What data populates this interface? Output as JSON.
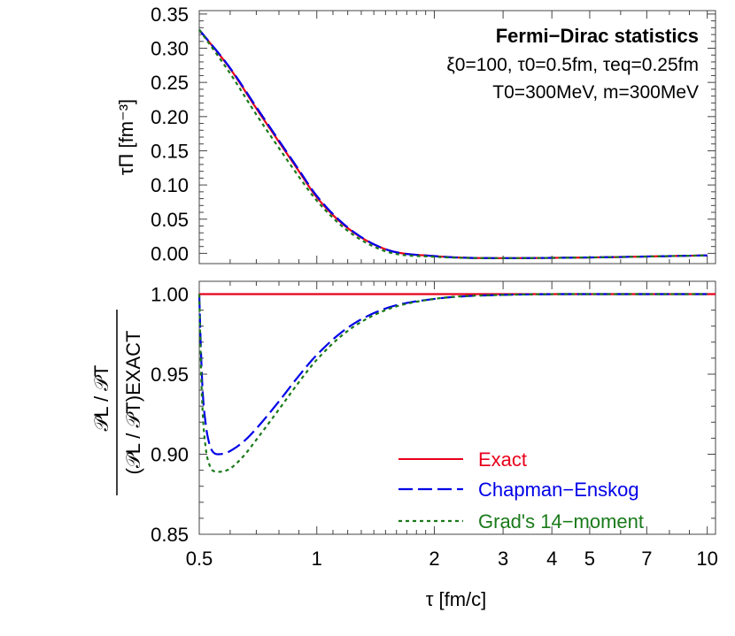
{
  "chart_data": [
    {
      "type": "line",
      "panel": "top",
      "ylabel": "τΠ [fm⁻³]",
      "xscale": "log",
      "xlim": [
        0.5,
        10.5
      ],
      "ylim": [
        -0.015,
        0.355
      ],
      "yticks": [
        0.0,
        0.05,
        0.1,
        0.15,
        0.2,
        0.25,
        0.3,
        0.35
      ],
      "ytick_labels": [
        "0.00",
        "0.05",
        "0.10",
        "0.15",
        "0.20",
        "0.25",
        "0.30",
        "0.35"
      ],
      "annotations": {
        "title": "Fermi−Dirac statistics",
        "params_line1": "ξ0=100, τ0=0.5fm, τeq=0.25fm",
        "params_line2": "T0=300MeV, m=300MeV"
      },
      "series": [
        {
          "name": "Exact",
          "color": "#e8001c",
          "x": [
            0.5,
            0.6,
            0.7,
            0.8,
            0.9,
            1.0,
            1.2,
            1.5,
            2.0,
            3.0,
            5.0,
            10.0
          ],
          "y": [
            0.327,
            0.27,
            0.212,
            0.163,
            0.12,
            0.082,
            0.037,
            0.006,
            -0.004,
            -0.007,
            -0.006,
            -0.003
          ]
        },
        {
          "name": "Chapman−Enskog",
          "color": "#0000e8",
          "x": [
            0.5,
            0.6,
            0.7,
            0.8,
            0.9,
            1.0,
            1.2,
            1.5,
            2.0,
            3.0,
            5.0,
            10.0
          ],
          "y": [
            0.327,
            0.271,
            0.214,
            0.165,
            0.122,
            0.084,
            0.038,
            0.006,
            -0.004,
            -0.007,
            -0.006,
            -0.003
          ]
        },
        {
          "name": "Grad's 14−moment",
          "color": "#1a7a1a",
          "x": [
            0.5,
            0.6,
            0.7,
            0.8,
            0.9,
            1.0,
            1.2,
            1.5,
            2.0,
            3.0,
            5.0,
            10.0
          ],
          "y": [
            0.327,
            0.263,
            0.203,
            0.154,
            0.112,
            0.077,
            0.033,
            0.003,
            -0.005,
            -0.007,
            -0.006,
            -0.003
          ]
        }
      ]
    },
    {
      "type": "line",
      "panel": "bottom",
      "ylabel_numerator": "𝒫L / 𝒫T",
      "ylabel_denominator": "(𝒫L / 𝒫T)EXACT",
      "xlabel": "τ [fm/c]",
      "xscale": "log",
      "xlim": [
        0.5,
        10.5
      ],
      "ylim": [
        0.85,
        1.008
      ],
      "xticks": [
        0.5,
        1,
        2,
        3,
        4,
        5,
        7,
        10
      ],
      "xtick_labels": [
        "0.5",
        "1",
        "2",
        "3",
        "4",
        "5",
        "7",
        "10"
      ],
      "yticks": [
        0.85,
        0.9,
        0.95,
        1.0
      ],
      "ytick_labels": [
        "0.85",
        "0.90",
        "0.95",
        "1.00"
      ],
      "legend": {
        "position": "bottom-right",
        "entries": [
          "Exact",
          "Chapman−Enskog",
          "Grad's 14−moment"
        ]
      },
      "series": [
        {
          "name": "Exact",
          "color": "#e8001c",
          "x": [
            0.5,
            10.5
          ],
          "y": [
            1.0,
            1.0
          ]
        },
        {
          "name": "Chapman−Enskog",
          "color": "#0000e8",
          "x": [
            0.5,
            0.505,
            0.51,
            0.52,
            0.53,
            0.54,
            0.56,
            0.58,
            0.6,
            0.65,
            0.7,
            0.8,
            0.9,
            1.0,
            1.2,
            1.5,
            2.0,
            3.0,
            5.0,
            10.0
          ],
          "y": [
            1.0,
            0.965,
            0.94,
            0.918,
            0.907,
            0.902,
            0.9,
            0.9005,
            0.902,
            0.908,
            0.916,
            0.933,
            0.949,
            0.962,
            0.979,
            0.991,
            0.997,
            0.9995,
            1.0,
            1.0
          ]
        },
        {
          "name": "Grad's 14−moment",
          "color": "#1a7a1a",
          "x": [
            0.5,
            0.505,
            0.51,
            0.52,
            0.53,
            0.54,
            0.56,
            0.58,
            0.6,
            0.65,
            0.7,
            0.8,
            0.9,
            1.0,
            1.2,
            1.5,
            2.0,
            3.0,
            5.0,
            10.0
          ],
          "y": [
            1.0,
            0.955,
            0.927,
            0.903,
            0.894,
            0.89,
            0.889,
            0.8895,
            0.891,
            0.899,
            0.909,
            0.928,
            0.945,
            0.959,
            0.977,
            0.99,
            0.997,
            0.9995,
            1.0,
            1.0
          ]
        }
      ]
    }
  ]
}
